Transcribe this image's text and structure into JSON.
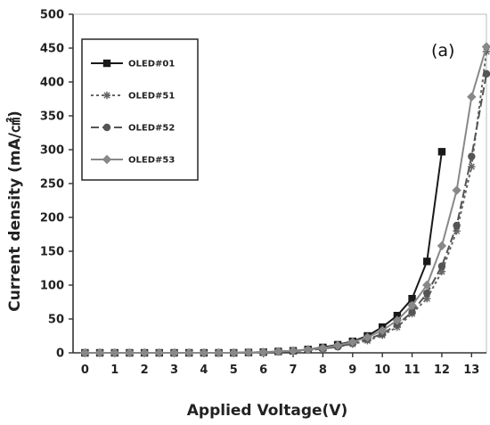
{
  "chart_data": {
    "type": "line",
    "title": "",
    "panel_label": "(a)",
    "xlabel": "Applied Voltage(V)",
    "ylabel": "Current density  (mA/㎠)",
    "xlim": [
      -0.4,
      13.5
    ],
    "ylim": [
      0,
      500
    ],
    "xticks": [
      "0",
      "1",
      "2",
      "3",
      "4",
      "5",
      "6",
      "7",
      "8",
      "9",
      "10",
      "11",
      "12",
      "13"
    ],
    "yticks": [
      "0",
      "50",
      "100",
      "150",
      "200",
      "250",
      "300",
      "350",
      "400",
      "450",
      "500"
    ],
    "grid": false,
    "legend_position": "top-left",
    "series": [
      {
        "name": "OLED#01",
        "color": "#1a1a1a",
        "marker": "square",
        "dash": "",
        "points": [
          [
            0,
            0
          ],
          [
            0.5,
            0
          ],
          [
            1,
            0
          ],
          [
            1.5,
            0
          ],
          [
            2,
            0
          ],
          [
            2.5,
            0
          ],
          [
            3,
            0
          ],
          [
            3.5,
            0
          ],
          [
            4,
            0
          ],
          [
            4.5,
            0
          ],
          [
            5,
            0
          ],
          [
            5.5,
            0.5
          ],
          [
            6,
            1
          ],
          [
            6.5,
            2
          ],
          [
            7,
            3
          ],
          [
            7.5,
            5
          ],
          [
            8,
            8
          ],
          [
            8.5,
            12
          ],
          [
            9,
            17
          ],
          [
            9.5,
            25
          ],
          [
            10,
            38
          ],
          [
            10.5,
            55
          ],
          [
            11,
            80
          ],
          [
            11.5,
            135
          ],
          [
            12,
            297
          ]
        ]
      },
      {
        "name": "OLED#51",
        "color": "#666666",
        "marker": "asterisk",
        "dash": "3,3",
        "points": [
          [
            0,
            0
          ],
          [
            0.5,
            0
          ],
          [
            1,
            0
          ],
          [
            1.5,
            0
          ],
          [
            2,
            0
          ],
          [
            2.5,
            0
          ],
          [
            3,
            0
          ],
          [
            3.5,
            0
          ],
          [
            4,
            0
          ],
          [
            4.5,
            0
          ],
          [
            5,
            0
          ],
          [
            5.5,
            0.5
          ],
          [
            6,
            1
          ],
          [
            6.5,
            1.5
          ],
          [
            7,
            2.5
          ],
          [
            7.5,
            4
          ],
          [
            8,
            6
          ],
          [
            8.5,
            9
          ],
          [
            9,
            13
          ],
          [
            9.5,
            18
          ],
          [
            10,
            26
          ],
          [
            10.5,
            38
          ],
          [
            11,
            58
          ],
          [
            11.5,
            80
          ],
          [
            12,
            120
          ],
          [
            12.5,
            180
          ],
          [
            13,
            275
          ],
          [
            13.5,
            445
          ]
        ]
      },
      {
        "name": "OLED#52",
        "color": "#555555",
        "marker": "circle",
        "dash": "9,4",
        "points": [
          [
            0,
            0
          ],
          [
            0.5,
            0
          ],
          [
            1,
            0
          ],
          [
            1.5,
            0
          ],
          [
            2,
            0
          ],
          [
            2.5,
            0
          ],
          [
            3,
            0
          ],
          [
            3.5,
            0
          ],
          [
            4,
            0
          ],
          [
            4.5,
            0
          ],
          [
            5,
            0
          ],
          [
            5.5,
            0.5
          ],
          [
            6,
            1
          ],
          [
            6.5,
            1.5
          ],
          [
            7,
            2.5
          ],
          [
            7.5,
            4
          ],
          [
            8,
            6
          ],
          [
            8.5,
            9
          ],
          [
            9,
            14
          ],
          [
            9.5,
            20
          ],
          [
            10,
            28
          ],
          [
            10.5,
            42
          ],
          [
            11,
            60
          ],
          [
            11.5,
            88
          ],
          [
            12,
            128
          ],
          [
            12.5,
            188
          ],
          [
            13,
            290
          ],
          [
            13.5,
            412
          ]
        ]
      },
      {
        "name": "OLED#53",
        "color": "#888888",
        "marker": "diamond",
        "dash": "",
        "points": [
          [
            0,
            0
          ],
          [
            0.5,
            0
          ],
          [
            1,
            0
          ],
          [
            1.5,
            0
          ],
          [
            2,
            0
          ],
          [
            2.5,
            0
          ],
          [
            3,
            0
          ],
          [
            3.5,
            0
          ],
          [
            4,
            0
          ],
          [
            4.5,
            0
          ],
          [
            5,
            0
          ],
          [
            5.5,
            0.5
          ],
          [
            6,
            1
          ],
          [
            6.5,
            2
          ],
          [
            7,
            3
          ],
          [
            7.5,
            5
          ],
          [
            8,
            7
          ],
          [
            8.5,
            11
          ],
          [
            9,
            16
          ],
          [
            9.5,
            23
          ],
          [
            10,
            33
          ],
          [
            10.5,
            48
          ],
          [
            11,
            70
          ],
          [
            11.5,
            100
          ],
          [
            12,
            158
          ],
          [
            12.5,
            240
          ],
          [
            13,
            378
          ],
          [
            13.5,
            452
          ]
        ]
      }
    ]
  }
}
